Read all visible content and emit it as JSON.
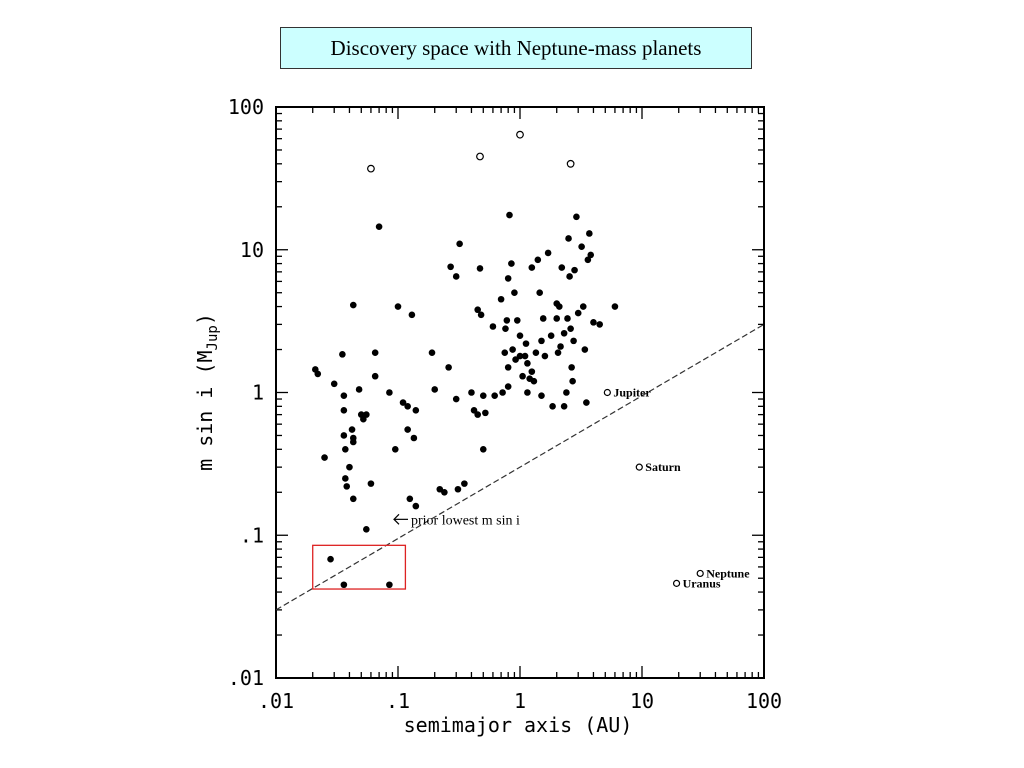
{
  "title": "Discovery space with Neptune-mass planets",
  "chart_data": {
    "type": "scatter",
    "title": "Discovery space with Neptune-mass planets",
    "xlabel": "semimajor axis (AU)",
    "ylabel_main": "m sin i (M",
    "ylabel_sub": "Jup",
    "ylabel_close": ")",
    "xscale": "log",
    "yscale": "log",
    "xlim": [
      0.01,
      100
    ],
    "ylim": [
      0.01,
      100
    ],
    "xtick_labels": [
      {
        "value": 0.01,
        "label": ".01"
      },
      {
        "value": 0.1,
        "label": ".1"
      },
      {
        "value": 1,
        "label": "1"
      },
      {
        "value": 10,
        "label": "10"
      },
      {
        "value": 100,
        "label": "100"
      }
    ],
    "ytick_labels": [
      {
        "value": 0.01,
        "label": ".01"
      },
      {
        "value": 0.1,
        "label": ".1"
      },
      {
        "value": 1,
        "label": "1"
      },
      {
        "value": 10,
        "label": "10"
      },
      {
        "value": 100,
        "label": "100"
      }
    ],
    "grid": false,
    "series": [
      {
        "marker": "filled",
        "points": [
          [
            0.021,
            1.45
          ],
          [
            0.022,
            1.35
          ],
          [
            0.025,
            0.35
          ],
          [
            0.03,
            1.15
          ],
          [
            0.035,
            1.85
          ],
          [
            0.036,
            0.95
          ],
          [
            0.036,
            0.75
          ],
          [
            0.036,
            0.5
          ],
          [
            0.037,
            0.4
          ],
          [
            0.037,
            0.25
          ],
          [
            0.038,
            0.22
          ],
          [
            0.04,
            0.3
          ],
          [
            0.042,
            0.55
          ],
          [
            0.043,
            0.48
          ],
          [
            0.043,
            0.45
          ],
          [
            0.043,
            0.18
          ],
          [
            0.043,
            4.1
          ],
          [
            0.048,
            1.05
          ],
          [
            0.05,
            0.7
          ],
          [
            0.052,
            0.65
          ],
          [
            0.055,
            0.7
          ],
          [
            0.055,
            0.11
          ],
          [
            0.06,
            0.23
          ],
          [
            0.065,
            1.3
          ],
          [
            0.065,
            1.9
          ],
          [
            0.07,
            14.5
          ],
          [
            0.085,
            1.0
          ],
          [
            0.095,
            0.4
          ],
          [
            0.1,
            4.0
          ],
          [
            0.11,
            0.85
          ],
          [
            0.12,
            0.8
          ],
          [
            0.12,
            0.55
          ],
          [
            0.125,
            0.18
          ],
          [
            0.13,
            3.5
          ],
          [
            0.135,
            0.48
          ],
          [
            0.14,
            0.16
          ],
          [
            0.14,
            0.75
          ],
          [
            0.19,
            1.9
          ],
          [
            0.2,
            1.05
          ],
          [
            0.22,
            0.21
          ],
          [
            0.24,
            0.2
          ],
          [
            0.26,
            1.5
          ],
          [
            0.27,
            7.6
          ],
          [
            0.3,
            0.9
          ],
          [
            0.3,
            6.5
          ],
          [
            0.31,
            0.21
          ],
          [
            0.32,
            11.0
          ],
          [
            0.35,
            0.23
          ],
          [
            0.4,
            1.0
          ],
          [
            0.42,
            0.75
          ],
          [
            0.45,
            0.7
          ],
          [
            0.45,
            3.8
          ],
          [
            0.47,
            7.4
          ],
          [
            0.48,
            3.5
          ],
          [
            0.5,
            0.4
          ],
          [
            0.5,
            0.95
          ],
          [
            0.52,
            0.72
          ],
          [
            0.6,
            2.9
          ],
          [
            0.62,
            0.95
          ],
          [
            0.7,
            4.5
          ],
          [
            0.72,
            1.0
          ],
          [
            0.75,
            1.9
          ],
          [
            0.76,
            2.8
          ],
          [
            0.78,
            3.2
          ],
          [
            0.8,
            1.1
          ],
          [
            0.8,
            1.5
          ],
          [
            0.8,
            6.3
          ],
          [
            0.82,
            17.5
          ],
          [
            0.85,
            8.0
          ],
          [
            0.87,
            2.0
          ],
          [
            0.9,
            5.0
          ],
          [
            0.92,
            1.7
          ],
          [
            0.95,
            3.2
          ],
          [
            1.0,
            2.5
          ],
          [
            1.0,
            1.8
          ],
          [
            1.05,
            1.3
          ],
          [
            1.1,
            1.8
          ],
          [
            1.12,
            2.2
          ],
          [
            1.15,
            1.6
          ],
          [
            1.15,
            1.0
          ],
          [
            1.2,
            1.25
          ],
          [
            1.25,
            7.5
          ],
          [
            1.25,
            1.4
          ],
          [
            1.3,
            1.2
          ],
          [
            1.35,
            1.9
          ],
          [
            1.4,
            8.5
          ],
          [
            1.45,
            5.0
          ],
          [
            1.5,
            2.3
          ],
          [
            1.5,
            0.95
          ],
          [
            1.55,
            3.3
          ],
          [
            1.6,
            1.8
          ],
          [
            1.7,
            9.5
          ],
          [
            1.8,
            2.5
          ],
          [
            1.85,
            0.8
          ],
          [
            2.0,
            4.2
          ],
          [
            2.0,
            3.3
          ],
          [
            2.05,
            1.9
          ],
          [
            2.1,
            4.0
          ],
          [
            2.15,
            2.1
          ],
          [
            2.2,
            7.5
          ],
          [
            2.3,
            0.8
          ],
          [
            2.3,
            2.6
          ],
          [
            2.4,
            1.0
          ],
          [
            2.45,
            3.3
          ],
          [
            2.5,
            12.0
          ],
          [
            2.55,
            6.5
          ],
          [
            2.6,
            2.8
          ],
          [
            2.65,
            1.5
          ],
          [
            2.7,
            1.2
          ],
          [
            2.75,
            2.3
          ],
          [
            2.8,
            7.2
          ],
          [
            2.9,
            17.0
          ],
          [
            3.0,
            3.6
          ],
          [
            3.2,
            10.5
          ],
          [
            3.3,
            4.0
          ],
          [
            3.4,
            2.0
          ],
          [
            3.5,
            0.85
          ],
          [
            3.6,
            8.5
          ],
          [
            3.7,
            13.0
          ],
          [
            3.8,
            9.2
          ],
          [
            4.0,
            3.1
          ],
          [
            4.5,
            3.0
          ],
          [
            6.0,
            4.0
          ],
          [
            0.028,
            0.068
          ],
          [
            0.036,
            0.045
          ],
          [
            0.085,
            0.045
          ]
        ]
      },
      {
        "marker": "open",
        "points": [
          [
            0.06,
            37
          ],
          [
            0.47,
            45
          ],
          [
            1.0,
            64
          ],
          [
            2.6,
            40
          ]
        ]
      }
    ],
    "solar_system": [
      {
        "name": "Jupiter",
        "a": 5.2,
        "m": 1.0
      },
      {
        "name": "Saturn",
        "a": 9.5,
        "m": 0.3
      },
      {
        "name": "Neptune",
        "a": 30,
        "m": 0.054
      },
      {
        "name": "Uranus",
        "a": 19.2,
        "m": 0.046
      }
    ],
    "threshold_line": {
      "style": "dashed",
      "from": [
        0.01,
        0.03
      ],
      "to": [
        100,
        3.0
      ]
    },
    "annotations": [
      {
        "text": "prior lowest m sin i",
        "arrow_to": [
          0.1,
          0.11
        ]
      }
    ],
    "highlight_box": {
      "color": "#dd2222",
      "x_range": [
        0.02,
        0.115
      ],
      "y_range": [
        0.042,
        0.085
      ]
    }
  }
}
